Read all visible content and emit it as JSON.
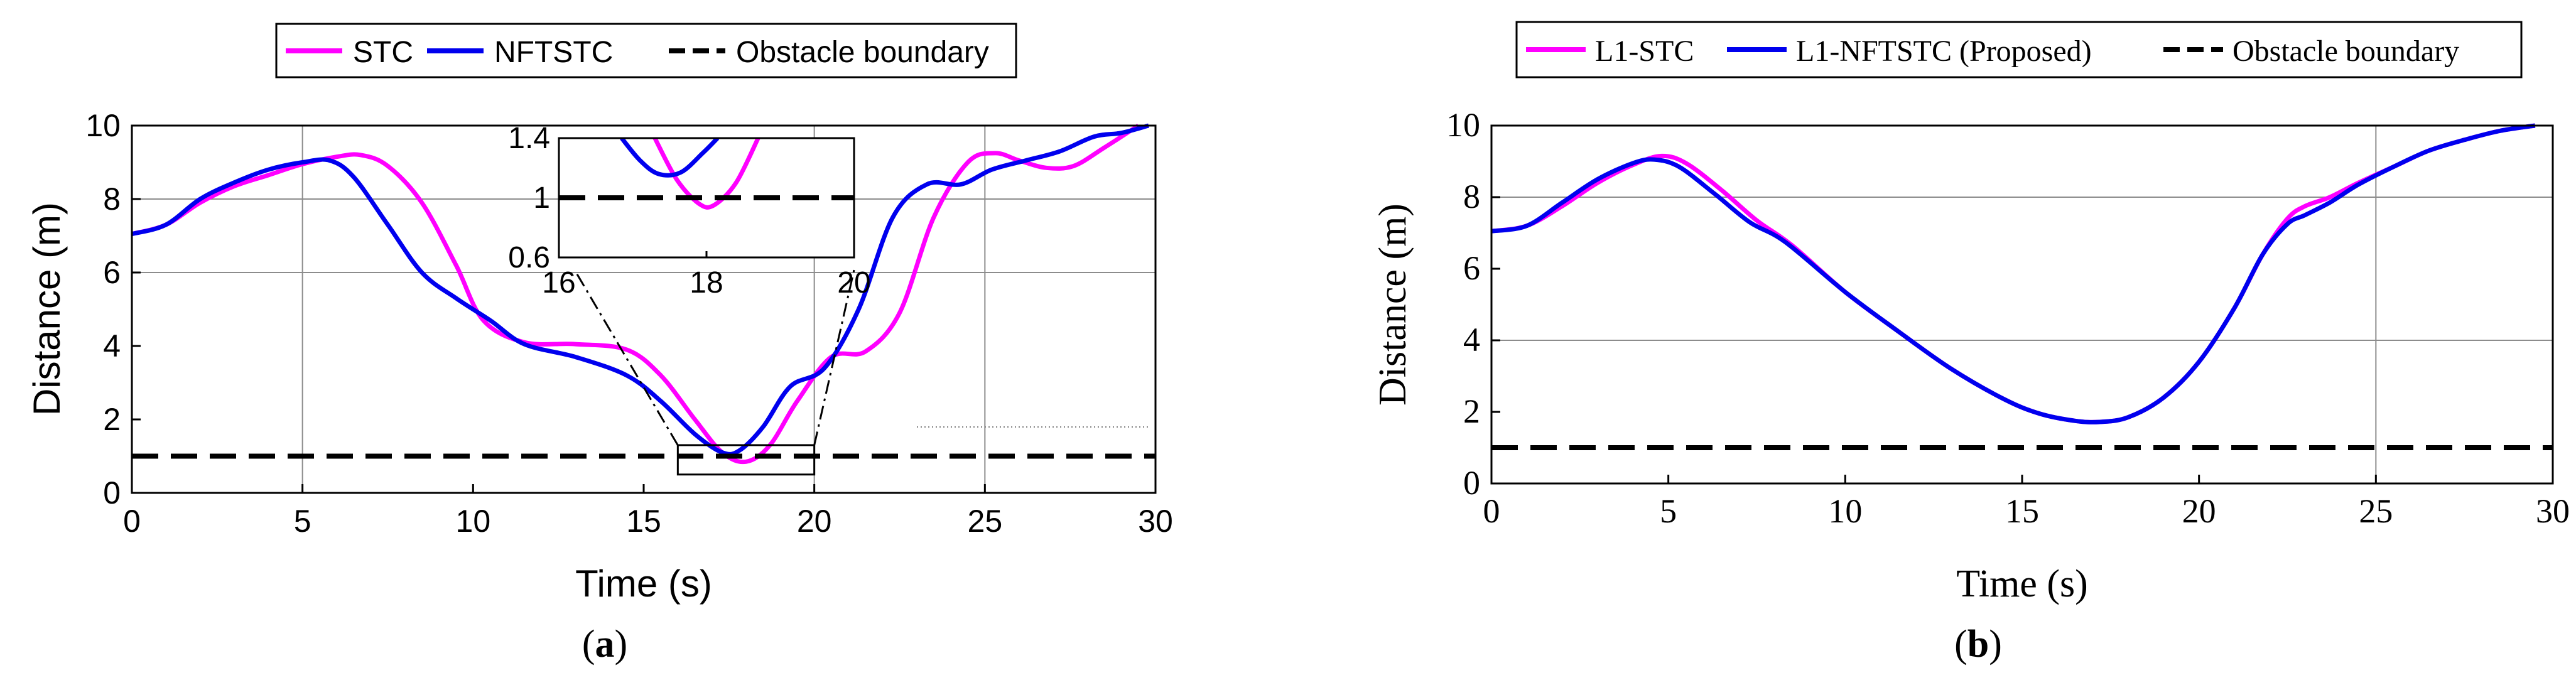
{
  "chart_data": [
    {
      "type": "line",
      "panel_label": "a",
      "xlabel": "Time (s)",
      "ylabel": "Distance (m)",
      "xlim": [
        0,
        30
      ],
      "ylim": [
        0,
        10
      ],
      "xticks": [
        "0",
        "5",
        "10",
        "15",
        "20",
        "25",
        "30"
      ],
      "yticks": [
        "0",
        "2",
        "4",
        "6",
        "8",
        "10"
      ],
      "legend_position": "top-center",
      "legend": [
        "STC",
        "NFTSTC",
        "Obstacle boundary"
      ],
      "colors": {
        "stc": "#ff00ff",
        "nftstc": "#0000ee",
        "obstacle": "#000000"
      },
      "series": [
        {
          "name": "STC",
          "x": [
            0,
            1,
            2,
            3,
            4,
            5,
            6,
            6.7,
            7.5,
            8.5,
            9.5,
            10.3,
            11.5,
            13,
            14.5,
            15.5,
            16.5,
            17.3,
            18,
            18.7,
            19.5,
            20.5,
            21.5,
            22.5,
            23.5,
            24.5,
            25.3,
            26,
            26.8,
            27.6,
            28.5,
            29.5
          ],
          "y": [
            7.05,
            7.3,
            7.9,
            8.35,
            8.65,
            8.95,
            9.15,
            9.2,
            8.9,
            7.9,
            6.2,
            4.7,
            4.1,
            4.05,
            3.9,
            3.2,
            2.0,
            1.1,
            0.85,
            1.3,
            2.5,
            3.7,
            3.85,
            4.9,
            7.5,
            9.0,
            9.25,
            9.05,
            8.85,
            8.9,
            9.4,
            10.0
          ]
        },
        {
          "name": "NFTSTC",
          "x": [
            0,
            1,
            2,
            3,
            4,
            5,
            5.8,
            6.5,
            7.5,
            8.5,
            9.5,
            10.5,
            11.5,
            13,
            14.5,
            15.5,
            16.5,
            17.3,
            17.8,
            18.5,
            19.3,
            20.3,
            21.3,
            22.3,
            23.3,
            24.3,
            25.2,
            26.2,
            27.2,
            28.2,
            29,
            29.8
          ],
          "y": [
            7.05,
            7.3,
            8.0,
            8.45,
            8.8,
            9.0,
            9.05,
            8.6,
            7.3,
            6.0,
            5.3,
            4.7,
            4.05,
            3.7,
            3.2,
            2.5,
            1.6,
            1.1,
            1.15,
            1.8,
            2.9,
            3.4,
            5.0,
            7.5,
            8.4,
            8.4,
            8.8,
            9.05,
            9.3,
            9.7,
            9.8,
            10.0
          ]
        },
        {
          "name": "Obstacle boundary",
          "x": [
            0,
            30
          ],
          "y": [
            1,
            1
          ]
        }
      ],
      "inset": {
        "xlim": [
          16,
          20
        ],
        "ylim": [
          0.6,
          1.4
        ],
        "xticks": [
          "16",
          "18",
          "20"
        ],
        "yticks": [
          "0.6",
          "1",
          "1.4"
        ],
        "series": [
          {
            "name": "STC",
            "x": [
              17.3,
              17.6,
              17.9,
              18.1,
              18.4,
              18.7
            ],
            "y": [
              1.4,
              1.12,
              0.96,
              0.95,
              1.1,
              1.4
            ]
          },
          {
            "name": "NFTSTC",
            "x": [
              16.85,
              17.1,
              17.35,
              17.65,
              17.95,
              18.15
            ],
            "y": [
              1.4,
              1.25,
              1.16,
              1.17,
              1.3,
              1.4
            ]
          },
          {
            "name": "Obstacle boundary",
            "x": [
              16,
              20
            ],
            "y": [
              1,
              1
            ]
          }
        ]
      }
    },
    {
      "type": "line",
      "panel_label": "b",
      "xlabel": "Time (s)",
      "ylabel": "Distance (m)",
      "xlim": [
        0,
        30
      ],
      "ylim": [
        0,
        10
      ],
      "xticks": [
        "0",
        "5",
        "10",
        "15",
        "20",
        "25",
        "30"
      ],
      "yticks": [
        "0",
        "2",
        "4",
        "6",
        "8",
        "10"
      ],
      "legend_position": "top-center",
      "legend": [
        "L1-STC",
        "L1-NFTSTC (Proposed)",
        "Obstacle boundary"
      ],
      "colors": {
        "stc": "#ff00ff",
        "nftstc": "#0000ee",
        "obstacle": "#000000"
      },
      "series": [
        {
          "name": "L1-STC",
          "x": [
            0,
            1,
            2,
            3,
            4,
            4.8,
            5.5,
            6.5,
            7.5,
            8.5,
            10,
            11.5,
            13,
            14.5,
            15.5,
            16.5,
            17.2,
            18,
            19,
            20,
            21,
            21.8,
            22.5,
            23,
            23.7,
            24.5,
            25.5,
            26.5,
            27.5,
            28.5,
            29.5
          ],
          "y": [
            7.05,
            7.2,
            7.75,
            8.4,
            8.9,
            9.15,
            8.95,
            8.2,
            7.35,
            6.65,
            5.35,
            4.25,
            3.2,
            2.35,
            1.95,
            1.75,
            1.72,
            1.85,
            2.4,
            3.4,
            4.9,
            6.4,
            7.4,
            7.75,
            8.0,
            8.4,
            8.85,
            9.3,
            9.6,
            9.85,
            10.0
          ]
        },
        {
          "name": "L1-NFTSTC (Proposed)",
          "x": [
            0,
            1,
            2,
            3,
            4,
            4.6,
            5.3,
            6.3,
            7.3,
            8.3,
            10,
            11.5,
            13,
            14.5,
            15.5,
            16.5,
            17.2,
            18,
            19,
            20,
            21,
            21.8,
            22.5,
            23,
            23.7,
            24.5,
            25.5,
            26.5,
            27.5,
            28.5,
            29.5
          ],
          "y": [
            7.05,
            7.2,
            7.85,
            8.5,
            8.95,
            9.05,
            8.85,
            8.1,
            7.3,
            6.75,
            5.35,
            4.25,
            3.2,
            2.35,
            1.95,
            1.75,
            1.72,
            1.85,
            2.4,
            3.4,
            4.9,
            6.4,
            7.25,
            7.5,
            7.85,
            8.35,
            8.85,
            9.3,
            9.6,
            9.85,
            10.0
          ]
        },
        {
          "name": "Obstacle boundary",
          "x": [
            0,
            30
          ],
          "y": [
            1,
            1
          ]
        }
      ]
    }
  ]
}
